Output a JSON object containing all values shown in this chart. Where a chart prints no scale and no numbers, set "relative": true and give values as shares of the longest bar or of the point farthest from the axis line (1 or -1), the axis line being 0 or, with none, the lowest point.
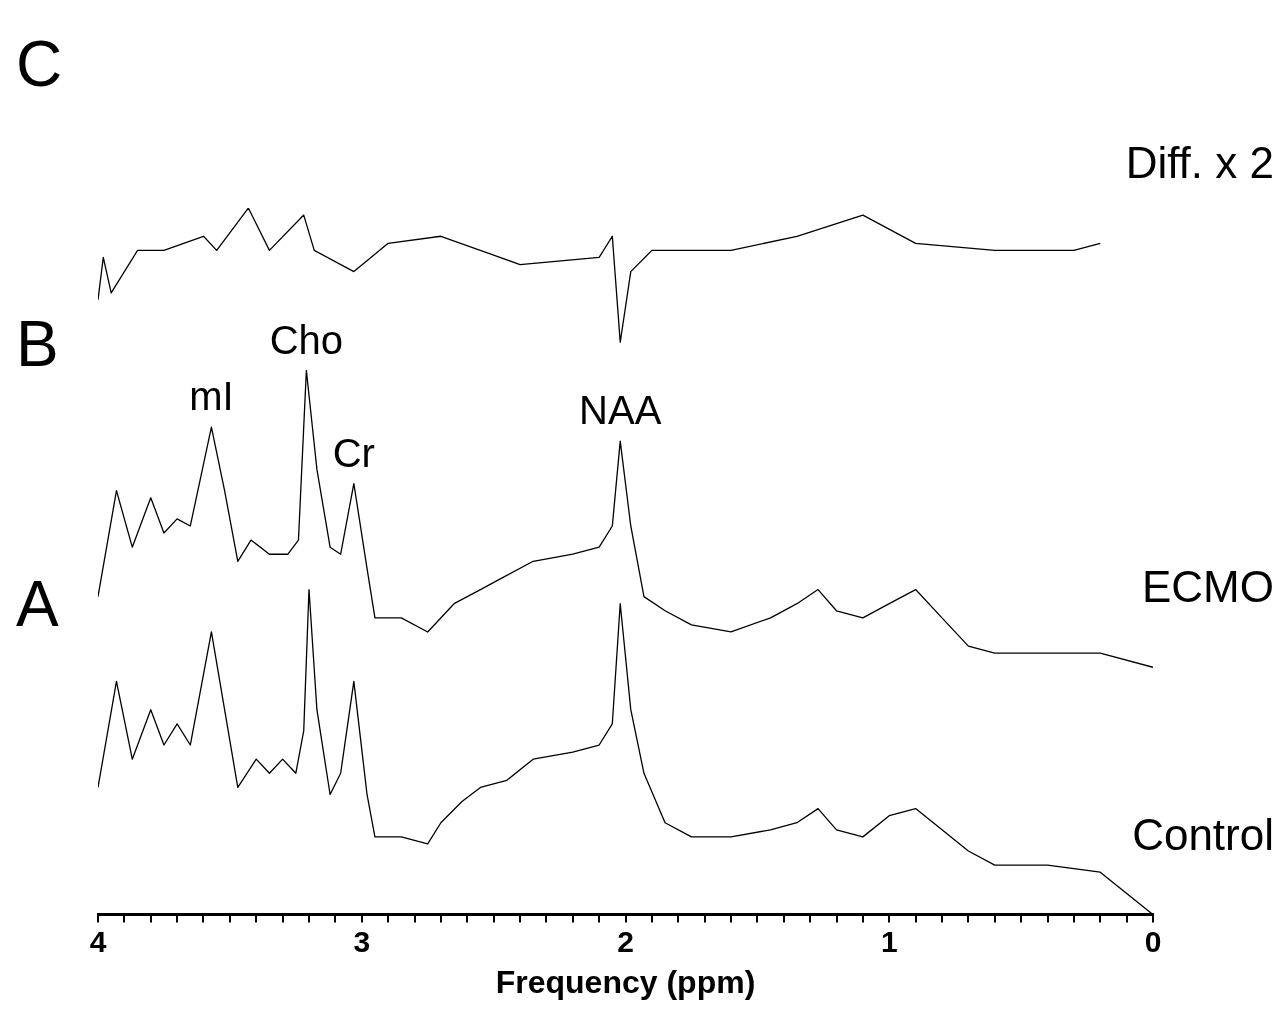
{
  "chart_data": {
    "type": "line",
    "relative": true,
    "xlabel": "Frequency (ppm)",
    "xlim": [
      4,
      0
    ],
    "xticks": [
      4,
      {
        "value": 3.9,
        "label": null
      },
      {
        "value": 3.8,
        "label": null
      },
      {
        "value": 3.7,
        "label": null
      },
      {
        "value": 3.6,
        "label": null
      },
      {
        "value": 3.5,
        "label": null
      },
      {
        "value": 3.4,
        "label": null
      },
      {
        "value": 3.3,
        "label": null
      },
      {
        "value": 3.2,
        "label": null
      },
      {
        "value": 3.1,
        "label": null
      },
      3,
      {
        "value": 2.9,
        "label": null
      },
      {
        "value": 2.8,
        "label": null
      },
      {
        "value": 2.7,
        "label": null
      },
      {
        "value": 2.6,
        "label": null
      },
      {
        "value": 2.5,
        "label": null
      },
      {
        "value": 2.4,
        "label": null
      },
      {
        "value": 2.3,
        "label": null
      },
      {
        "value": 2.2,
        "label": null
      },
      {
        "value": 2.1,
        "label": null
      },
      2,
      {
        "value": 1.9,
        "label": null
      },
      {
        "value": 1.8,
        "label": null
      },
      {
        "value": 1.7,
        "label": null
      },
      {
        "value": 1.6,
        "label": null
      },
      {
        "value": 1.5,
        "label": null
      },
      {
        "value": 1.4,
        "label": null
      },
      {
        "value": 1.3,
        "label": null
      },
      {
        "value": 1.2,
        "label": null
      },
      {
        "value": 1.1,
        "label": null
      },
      1,
      {
        "value": 0.9,
        "label": null
      },
      {
        "value": 0.8,
        "label": null
      },
      {
        "value": 0.7,
        "label": null
      },
      {
        "value": 0.6,
        "label": null
      },
      {
        "value": 0.5,
        "label": null
      },
      {
        "value": 0.4,
        "label": null
      },
      {
        "value": 0.3,
        "label": null
      },
      {
        "value": 0.2,
        "label": null
      },
      {
        "value": 0.1,
        "label": null
      },
      0
    ],
    "grid": false,
    "legend": false,
    "marker": "none",
    "series": [
      {
        "name": "Diff. x 2",
        "color": "#000000",
        "x": [
          4.0,
          3.98,
          3.95,
          3.85,
          3.75,
          3.6,
          3.55,
          3.45,
          3.43,
          3.35,
          3.22,
          3.18,
          3.03,
          2.9,
          2.7,
          2.4,
          2.1,
          2.05,
          2.02,
          1.98,
          1.9,
          1.6,
          1.35,
          1.1,
          0.9,
          0.6,
          0.3,
          0.2
        ],
        "values": [
          0.87,
          0.93,
          0.88,
          0.94,
          0.94,
          0.96,
          0.94,
          0.99,
          1.0,
          0.94,
          0.99,
          0.94,
          0.91,
          0.95,
          0.96,
          0.92,
          0.93,
          0.96,
          0.81,
          0.91,
          0.94,
          0.94,
          0.96,
          0.99,
          0.95,
          0.94,
          0.94,
          0.95
        ]
      },
      {
        "name": "ECMO",
        "color": "#000000",
        "x": [
          4.0,
          3.93,
          3.87,
          3.8,
          3.75,
          3.7,
          3.65,
          3.57,
          3.52,
          3.47,
          3.42,
          3.35,
          3.28,
          3.24,
          3.21,
          3.17,
          3.12,
          3.08,
          3.03,
          2.98,
          2.95,
          2.85,
          2.75,
          2.65,
          2.55,
          2.45,
          2.35,
          2.2,
          2.1,
          2.05,
          2.02,
          1.98,
          1.93,
          1.85,
          1.75,
          1.6,
          1.45,
          1.35,
          1.27,
          1.2,
          1.1,
          1.0,
          0.9,
          0.8,
          0.7,
          0.6,
          0.4,
          0.2,
          0.0
        ],
        "values": [
          0.45,
          0.6,
          0.52,
          0.59,
          0.54,
          0.56,
          0.55,
          0.69,
          0.6,
          0.5,
          0.53,
          0.51,
          0.51,
          0.53,
          0.77,
          0.63,
          0.52,
          0.51,
          0.61,
          0.49,
          0.42,
          0.42,
          0.4,
          0.44,
          0.46,
          0.48,
          0.5,
          0.51,
          0.52,
          0.55,
          0.67,
          0.55,
          0.45,
          0.43,
          0.41,
          0.4,
          0.42,
          0.44,
          0.46,
          0.43,
          0.42,
          0.44,
          0.46,
          0.42,
          0.38,
          0.37,
          0.37,
          0.37,
          0.35
        ]
      },
      {
        "name": "Control",
        "color": "#000000",
        "x": [
          4.0,
          3.93,
          3.87,
          3.8,
          3.75,
          3.7,
          3.65,
          3.57,
          3.52,
          3.47,
          3.4,
          3.35,
          3.3,
          3.25,
          3.22,
          3.2,
          3.17,
          3.12,
          3.08,
          3.03,
          2.98,
          2.95,
          2.85,
          2.75,
          2.7,
          2.62,
          2.55,
          2.45,
          2.35,
          2.2,
          2.1,
          2.05,
          2.02,
          1.98,
          1.93,
          1.85,
          1.75,
          1.6,
          1.45,
          1.35,
          1.27,
          1.2,
          1.1,
          1.0,
          0.9,
          0.8,
          0.7,
          0.6,
          0.4,
          0.2,
          0.0
        ],
        "values": [
          0.18,
          0.33,
          0.22,
          0.29,
          0.24,
          0.27,
          0.24,
          0.4,
          0.29,
          0.18,
          0.22,
          0.2,
          0.22,
          0.2,
          0.26,
          0.46,
          0.29,
          0.17,
          0.2,
          0.33,
          0.17,
          0.11,
          0.11,
          0.1,
          0.13,
          0.16,
          0.18,
          0.19,
          0.22,
          0.23,
          0.24,
          0.27,
          0.44,
          0.29,
          0.2,
          0.13,
          0.11,
          0.11,
          0.12,
          0.13,
          0.15,
          0.12,
          0.11,
          0.14,
          0.15,
          0.12,
          0.09,
          0.07,
          0.07,
          0.06,
          0.0
        ]
      }
    ],
    "annotations": [
      "C",
      "B",
      "A",
      {
        "text": "mI",
        "x": 3.57,
        "y": 0.69
      },
      {
        "text": "Cho",
        "x": 3.21,
        "y": 0.77
      },
      {
        "text": "Cr",
        "x": 3.03,
        "y": 0.61
      },
      {
        "text": "NAA",
        "x": 2.02,
        "y": 0.67
      }
    ]
  }
}
